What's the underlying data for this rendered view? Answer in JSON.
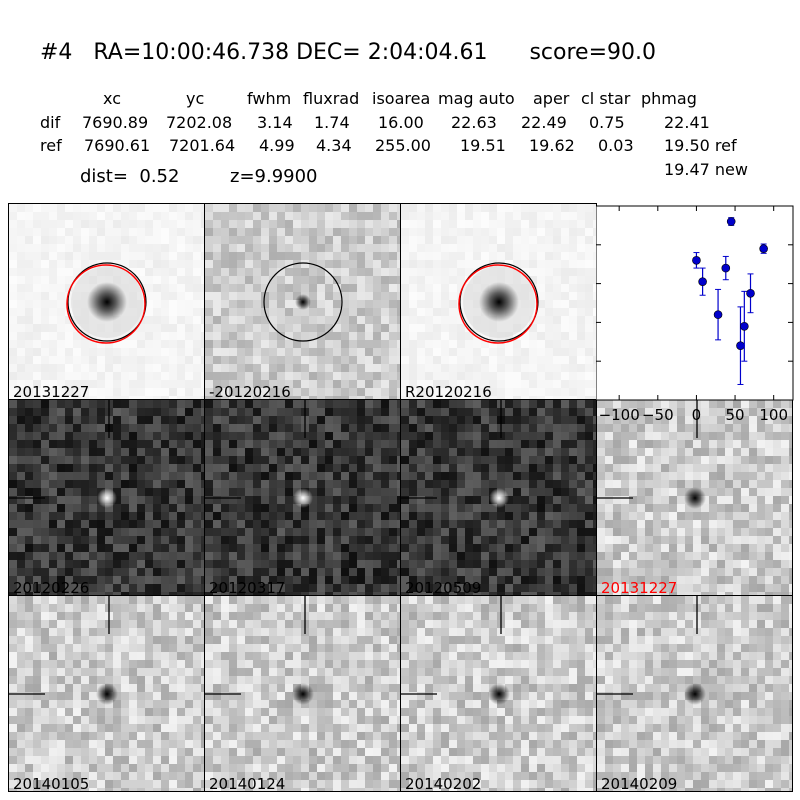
{
  "header": {
    "title": "#4   RA=10:00:46.738 DEC= 2:04:04.61      score=90.0",
    "columns": [
      "xc",
      "yc",
      "fwhm",
      "fluxrad",
      "isoarea",
      "mag auto",
      "aper",
      "cl star",
      "phmag"
    ],
    "rows": [
      {
        "label": "dif",
        "values": [
          "7690.89",
          "7202.08",
          "3.14",
          "1.74",
          "16.00",
          "22.63",
          "22.49",
          "0.75",
          "22.41"
        ]
      },
      {
        "label": "ref",
        "values": [
          "7690.61",
          "7201.64",
          "4.99",
          "4.34",
          "255.00",
          "19.51",
          "19.62",
          "0.03",
          "19.50 ref"
        ]
      }
    ],
    "extra_phmag": "19.47 new",
    "dist_text": "dist=  0.52",
    "z_text": "z=9.9900"
  },
  "colors": {
    "accent_red": "#ff0000",
    "point_blue": "#0000cc"
  },
  "panels": [
    {
      "id": "p1",
      "label": "20131227",
      "style": "light-circle-red"
    },
    {
      "id": "p2",
      "label": "-20120216",
      "style": "noise-circle"
    },
    {
      "id": "p3",
      "label": "R20120216",
      "style": "light-circle-red"
    },
    {
      "id": "p5",
      "label": "20120226",
      "style": "dark-cross"
    },
    {
      "id": "p6",
      "label": "20120317",
      "style": "dark-cross"
    },
    {
      "id": "p7",
      "label": "20120509",
      "style": "dark-cross"
    },
    {
      "id": "p8",
      "label": "20131227",
      "style": "light-cross",
      "label_color": "#ff0000"
    },
    {
      "id": "p9",
      "label": "20140105",
      "style": "light-cross"
    },
    {
      "id": "p10",
      "label": "20140124",
      "style": "light-cross"
    },
    {
      "id": "p11",
      "label": "20140202",
      "style": "light-cross"
    },
    {
      "id": "p12",
      "label": "20140209",
      "style": "light-cross"
    }
  ],
  "chart_data": {
    "type": "scatter",
    "x": [
      0,
      8,
      28,
      38,
      45,
      57,
      62,
      70,
      87
    ],
    "y": [
      22.4,
      22.95,
      23.8,
      22.6,
      21.4,
      24.6,
      24.1,
      23.25,
      22.1
    ],
    "yerr": [
      0.2,
      0.35,
      0.65,
      0.3,
      0.1,
      1.0,
      0.9,
      0.5,
      0.12
    ],
    "xlim": [
      -130,
      125
    ],
    "ylim": [
      26,
      21
    ],
    "xticks": [
      "-100",
      "-50",
      "0",
      "50",
      "100"
    ],
    "xtick_values": [
      -100,
      -50,
      0,
      50,
      100
    ],
    "yticks": [
      "21",
      "22",
      "23",
      "24",
      "25",
      "26"
    ],
    "ytick_values": [
      21,
      22,
      23,
      24,
      25,
      26
    ],
    "inverted_y": true
  }
}
